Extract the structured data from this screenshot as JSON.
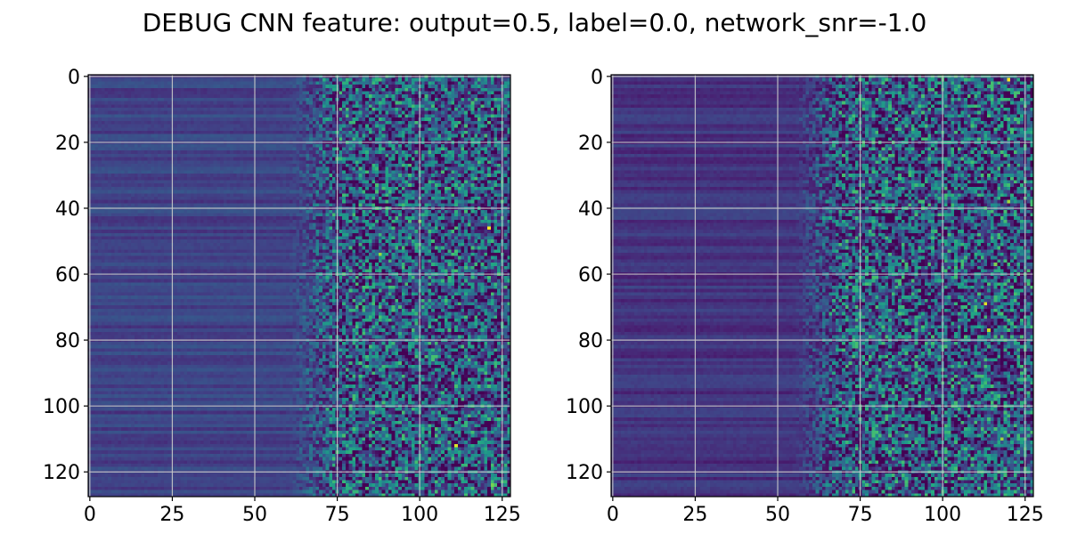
{
  "figure": {
    "title": "DEBUG CNN feature: output=0.5, label=0.0, network_snr=-1.0"
  },
  "chart_data": [
    {
      "type": "heatmap",
      "panel": "left",
      "colormap": "viridis",
      "rows": 128,
      "cols": 128,
      "xlim": [
        -0.5,
        127.5
      ],
      "ylim": [
        127.5,
        -0.5
      ],
      "x_ticks": [
        0,
        25,
        50,
        75,
        100,
        125
      ],
      "y_ticks": [
        0,
        20,
        40,
        60,
        80,
        100,
        120
      ],
      "x_tick_labels": [
        "0",
        "25",
        "50",
        "75",
        "100",
        "125"
      ],
      "y_tick_labels": [
        "0",
        "20",
        "40",
        "60",
        "80",
        "100",
        "120"
      ],
      "grid": true,
      "xlabel": "",
      "ylabel": "",
      "value_scale": [
        0,
        1
      ],
      "description_of_pattern": {
        "smooth_region_cols": [
          0,
          60
        ],
        "smooth_level": 0.2,
        "noisy_region_cols": [
          60,
          127
        ],
        "noisy_mean": 0.3,
        "noisy_spread": 0.35,
        "transition_col": 75
      },
      "hotspots": [
        {
          "x": 121,
          "y": 46,
          "value": 1.0
        },
        {
          "x": 111,
          "y": 112,
          "value": 0.95
        },
        {
          "x": 88,
          "y": 54,
          "value": 0.85
        },
        {
          "x": 100,
          "y": 44,
          "value": 0.8
        },
        {
          "x": 122,
          "y": 124,
          "value": 0.8
        }
      ]
    },
    {
      "type": "heatmap",
      "panel": "right",
      "colormap": "viridis",
      "rows": 128,
      "cols": 128,
      "xlim": [
        -0.5,
        127.5
      ],
      "ylim": [
        127.5,
        -0.5
      ],
      "x_ticks": [
        0,
        25,
        50,
        75,
        100,
        125
      ],
      "y_ticks": [
        0,
        20,
        40,
        60,
        80,
        100,
        120
      ],
      "x_tick_labels": [
        "0",
        "25",
        "50",
        "75",
        "100",
        "125"
      ],
      "y_tick_labels": [
        "0",
        "20",
        "40",
        "60",
        "80",
        "100",
        "120"
      ],
      "grid": true,
      "xlabel": "",
      "ylabel": "",
      "value_scale": [
        0,
        1
      ],
      "description_of_pattern": {
        "smooth_region_cols": [
          0,
          55
        ],
        "smooth_level": 0.15,
        "noisy_region_cols": [
          55,
          127
        ],
        "noisy_mean": 0.3,
        "noisy_spread": 0.38,
        "transition_col": 70
      },
      "hotspots": [
        {
          "x": 120,
          "y": 1,
          "value": 1.0
        },
        {
          "x": 113,
          "y": 69,
          "value": 0.95
        },
        {
          "x": 114,
          "y": 77,
          "value": 0.9
        },
        {
          "x": 120,
          "y": 38,
          "value": 0.85
        },
        {
          "x": 118,
          "y": 110,
          "value": 0.85
        },
        {
          "x": 116,
          "y": 57,
          "value": 0.8
        }
      ]
    }
  ]
}
